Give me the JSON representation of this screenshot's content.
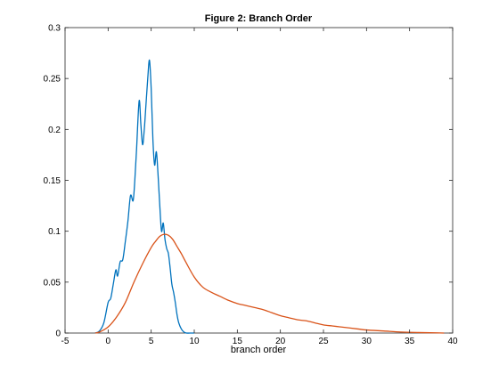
{
  "chart_data": {
    "type": "line",
    "title": "Figure 2: Branch Order",
    "xlabel": "branch order",
    "ylabel": "",
    "xlim": [
      -5,
      40
    ],
    "ylim": [
      0,
      0.3
    ],
    "xticks": [
      -5,
      0,
      5,
      10,
      15,
      20,
      25,
      30,
      35,
      40
    ],
    "xtick_labels": [
      "-5",
      "0",
      "5",
      "10",
      "15",
      "20",
      "25",
      "30",
      "35",
      "40"
    ],
    "yticks": [
      0,
      0.05,
      0.1,
      0.15,
      0.2,
      0.25,
      0.3
    ],
    "ytick_labels": [
      "0",
      "0.05",
      "0.1",
      "0.15",
      "0.2",
      "0.25",
      "0.3"
    ],
    "grid": false,
    "legend": "none",
    "series": [
      {
        "color": "#0072bd",
        "x": [
          -1.5,
          -1.0,
          -0.5,
          0.0,
          0.3,
          0.6,
          0.9,
          1.1,
          1.4,
          1.7,
          2.0,
          2.3,
          2.6,
          2.9,
          3.1,
          3.3,
          3.6,
          3.8,
          4.0,
          4.2,
          4.4,
          4.6,
          4.8,
          5.0,
          5.2,
          5.4,
          5.6,
          5.8,
          6.0,
          6.2,
          6.4,
          6.6,
          6.8,
          7.0,
          7.2,
          7.4,
          7.6,
          7.8,
          8.0,
          8.2,
          8.5,
          8.8,
          9.1,
          9.5,
          10.0
        ],
        "y": [
          0.0,
          0.002,
          0.01,
          0.03,
          0.034,
          0.048,
          0.062,
          0.056,
          0.07,
          0.072,
          0.09,
          0.11,
          0.135,
          0.13,
          0.15,
          0.18,
          0.228,
          0.205,
          0.185,
          0.2,
          0.225,
          0.25,
          0.268,
          0.24,
          0.19,
          0.165,
          0.178,
          0.155,
          0.125,
          0.1,
          0.108,
          0.092,
          0.083,
          0.078,
          0.064,
          0.048,
          0.04,
          0.03,
          0.018,
          0.01,
          0.004,
          0.001,
          0.0,
          0.0,
          0.0
        ]
      },
      {
        "color": "#d95319",
        "x": [
          -1.5,
          -1.0,
          0.0,
          1.0,
          2.0,
          3.0,
          4.0,
          5.0,
          5.5,
          6.0,
          6.5,
          7.0,
          7.5,
          8.0,
          8.5,
          9.0,
          10.0,
          11.0,
          12.0,
          13.0,
          14.0,
          15.0,
          16.0,
          17.0,
          18.0,
          19.0,
          20.0,
          21.0,
          22.0,
          23.0,
          24.0,
          25.0,
          26.0,
          27.0,
          28.0,
          29.0,
          30.0,
          32.0,
          34.0,
          36.0,
          38.0,
          39.0
        ],
        "y": [
          0.0,
          0.001,
          0.006,
          0.016,
          0.03,
          0.05,
          0.068,
          0.084,
          0.09,
          0.095,
          0.097,
          0.096,
          0.092,
          0.085,
          0.078,
          0.07,
          0.055,
          0.045,
          0.04,
          0.036,
          0.032,
          0.029,
          0.027,
          0.025,
          0.023,
          0.02,
          0.017,
          0.015,
          0.013,
          0.012,
          0.01,
          0.008,
          0.007,
          0.006,
          0.005,
          0.004,
          0.003,
          0.002,
          0.001,
          0.0005,
          0.0002,
          0.0
        ]
      }
    ]
  }
}
